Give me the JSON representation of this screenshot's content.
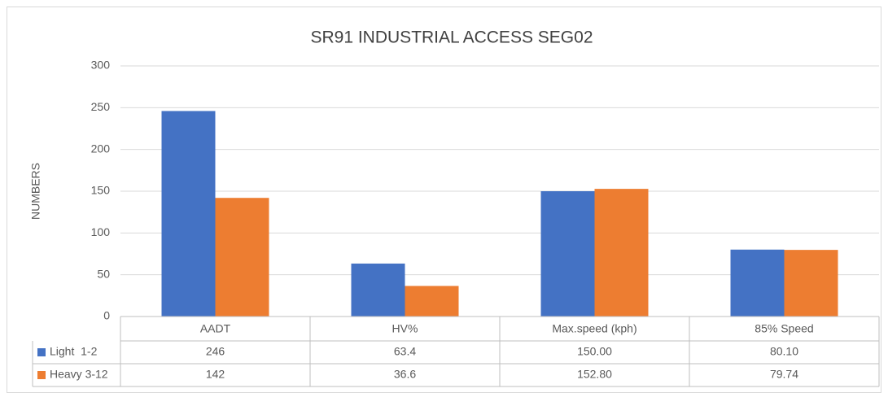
{
  "chart_data": {
    "type": "bar",
    "title": "SR91 INDUSTRIAL ACCESS SEG02",
    "y_label": "NUMBERS",
    "categories": [
      "AADT",
      "HV%",
      "Max.speed (kph)",
      "85% Speed"
    ],
    "series": [
      {
        "name": "Light  1-2",
        "color": "#4472c4",
        "values": [
          246,
          63.4,
          150.0,
          80.1
        ],
        "value_labels": [
          "246",
          "63.4",
          "150.00",
          "80.10"
        ]
      },
      {
        "name": "Heavy 3-12",
        "color": "#ed7d31",
        "values": [
          142,
          36.6,
          152.8,
          79.74
        ],
        "value_labels": [
          "142",
          "36.6",
          "152.80",
          "79.74"
        ]
      }
    ],
    "ylim": [
      0,
      300
    ],
    "yticks": [
      0,
      50,
      100,
      150,
      200,
      250,
      300
    ],
    "grid": true
  }
}
